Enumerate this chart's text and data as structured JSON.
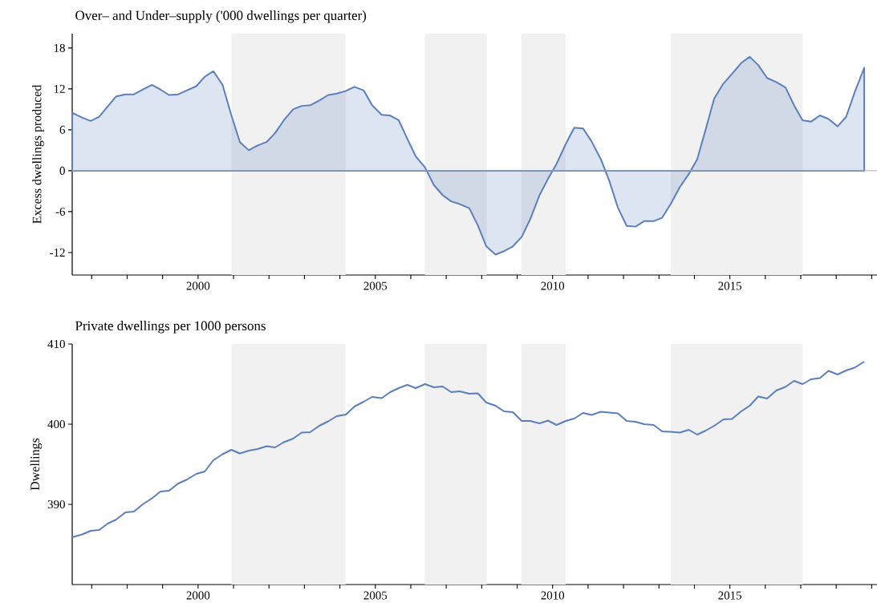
{
  "chart_data": [
    {
      "type": "area",
      "title": "Over– and Under–supply ('000 dwellings per quarter)",
      "ylabel": "Excess dwellings produced",
      "x": [
        1996.45,
        1996.73,
        1996.97,
        1997.21,
        1997.45,
        1997.69,
        1997.95,
        1998.19,
        1998.44,
        1998.7,
        1998.94,
        1999.18,
        1999.44,
        1999.69,
        1999.95,
        2000.19,
        2000.43,
        2000.69,
        2000.94,
        2001.18,
        2001.43,
        2001.68,
        2001.93,
        2002.17,
        2002.42,
        2002.68,
        2002.92,
        2003.16,
        2003.42,
        2003.67,
        2003.91,
        2004.17,
        2004.41,
        2004.67,
        2004.91,
        2005.18,
        2005.42,
        2005.66,
        2005.9,
        2006.14,
        2006.4,
        2006.65,
        2006.9,
        2007.14,
        2007.38,
        2007.65,
        2007.89,
        2008.13,
        2008.39,
        2008.63,
        2008.88,
        2009.13,
        2009.37,
        2009.63,
        2009.87,
        2010.11,
        2010.37,
        2010.61,
        2010.86,
        2011.1,
        2011.36,
        2011.6,
        2011.84,
        2012.09,
        2012.34,
        2012.58,
        2012.85,
        2013.09,
        2013.33,
        2013.59,
        2013.84,
        2014.08,
        2014.32,
        2014.56,
        2014.82,
        2015.06,
        2015.32,
        2015.56,
        2015.8,
        2016.05,
        2016.31,
        2016.57,
        2016.81,
        2017.05,
        2017.29,
        2017.54,
        2017.78,
        2018.04,
        2018.28,
        2018.52,
        2018.79
      ],
      "series": [
        {
          "color": "#5b7fbc",
          "values": [
            8.5,
            7.8,
            7.3,
            7.9,
            9.4,
            10.9,
            11.2,
            11.2,
            11.9,
            12.6,
            11.9,
            11.1,
            11.2,
            11.8,
            12.4,
            13.8,
            14.6,
            12.6,
            8.1,
            4.2,
            3.0,
            3.7,
            4.2,
            5.5,
            7.4,
            9.0,
            9.5,
            9.6,
            10.3,
            11.1,
            11.3,
            11.7,
            12.3,
            11.8,
            9.6,
            8.2,
            8.1,
            7.4,
            4.7,
            2.1,
            0.5,
            -2.1,
            -3.6,
            -4.5,
            -4.9,
            -5.5,
            -8.0,
            -11.1,
            -12.3,
            -11.8,
            -11.1,
            -9.7,
            -7.1,
            -3.6,
            -1.2,
            1.0,
            3.9,
            6.3,
            6.2,
            4.3,
            1.7,
            -1.5,
            -5.4,
            -8.1,
            -8.2,
            -7.4,
            -7.4,
            -6.9,
            -4.9,
            -2.4,
            -0.5,
            1.7,
            6.1,
            10.6,
            12.8,
            14.2,
            15.8,
            16.7,
            15.5,
            13.6,
            13.0,
            12.2,
            9.6,
            7.4,
            7.2,
            8.1,
            7.6,
            6.5,
            7.9,
            11.5,
            15.1
          ]
        }
      ],
      "xlim": [
        1996.45,
        2019.15
      ],
      "ylim": [
        -15.3,
        20.1
      ],
      "xticks": [
        {
          "value": 1997,
          "label": null
        },
        {
          "value": 1998,
          "label": null
        },
        {
          "value": 1999,
          "label": null
        },
        2000,
        {
          "value": 2001,
          "label": null
        },
        {
          "value": 2002,
          "label": null
        },
        {
          "value": 2003,
          "label": null
        },
        {
          "value": 2004,
          "label": null
        },
        2005,
        {
          "value": 2006,
          "label": null
        },
        {
          "value": 2007,
          "label": null
        },
        {
          "value": 2008,
          "label": null
        },
        {
          "value": 2009,
          "label": null
        },
        2010,
        {
          "value": 2011,
          "label": null
        },
        {
          "value": 2012,
          "label": null
        },
        {
          "value": 2013,
          "label": null
        },
        {
          "value": 2014,
          "label": null
        },
        2015,
        {
          "value": 2016,
          "label": null
        },
        {
          "value": 2017,
          "label": null
        },
        {
          "value": 2018,
          "label": null
        },
        {
          "value": 2019,
          "label": null
        }
      ],
      "yticks": [
        -12,
        -6,
        0,
        6,
        12,
        18
      ],
      "ref_lines": [
        {
          "axis": "y",
          "value": 0,
          "color": "#a8afbd"
        }
      ],
      "bands": [
        {
          "axis": "x",
          "from": 2000.94,
          "to": 2004.16,
          "color": "#f1f1f1"
        },
        {
          "axis": "x",
          "from": 2006.4,
          "to": 2008.14,
          "color": "#f1f1f1"
        },
        {
          "axis": "x",
          "from": 2009.12,
          "to": 2010.37,
          "color": "#f1f1f1"
        },
        {
          "axis": "x",
          "from": 2013.33,
          "to": 2017.05,
          "color": "#f1f1f1"
        }
      ]
    },
    {
      "type": "line",
      "title": "Private dwellings per 1000 persons",
      "ylabel": "Dwellings",
      "x": [
        1996.45,
        1996.73,
        1996.97,
        1997.21,
        1997.45,
        1997.69,
        1997.95,
        1998.19,
        1998.44,
        1998.7,
        1998.94,
        1999.18,
        1999.44,
        1999.69,
        1999.95,
        2000.19,
        2000.43,
        2000.69,
        2000.94,
        2001.18,
        2001.43,
        2001.68,
        2001.93,
        2002.17,
        2002.42,
        2002.68,
        2002.92,
        2003.16,
        2003.42,
        2003.67,
        2003.91,
        2004.17,
        2004.41,
        2004.67,
        2004.91,
        2005.18,
        2005.42,
        2005.66,
        2005.9,
        2006.14,
        2006.4,
        2006.65,
        2006.9,
        2007.14,
        2007.38,
        2007.65,
        2007.89,
        2008.13,
        2008.39,
        2008.63,
        2008.88,
        2009.13,
        2009.37,
        2009.63,
        2009.87,
        2010.11,
        2010.37,
        2010.61,
        2010.86,
        2011.1,
        2011.36,
        2011.6,
        2011.84,
        2012.09,
        2012.34,
        2012.58,
        2012.85,
        2013.09,
        2013.33,
        2013.59,
        2013.84,
        2014.08,
        2014.32,
        2014.56,
        2014.82,
        2015.06,
        2015.32,
        2015.56,
        2015.8,
        2016.05,
        2016.31,
        2016.57,
        2016.81,
        2017.05,
        2017.29,
        2017.54,
        2017.78,
        2018.04,
        2018.28,
        2018.52,
        2018.79
      ],
      "series": [
        {
          "color": "#5b7fbc",
          "values": [
            385.9,
            386.25,
            386.7,
            386.8,
            387.6,
            388.1,
            389.0,
            389.1,
            390.0,
            390.75,
            391.6,
            391.7,
            392.6,
            393.1,
            393.8,
            394.1,
            395.5,
            396.25,
            396.8,
            396.35,
            396.7,
            396.9,
            397.25,
            397.1,
            397.75,
            398.2,
            398.95,
            399.0,
            399.8,
            400.35,
            401.0,
            401.2,
            402.2,
            402.8,
            403.4,
            403.25,
            404.0,
            404.5,
            404.9,
            404.5,
            405.0,
            404.6,
            404.7,
            404.0,
            404.1,
            403.8,
            403.85,
            402.7,
            402.3,
            401.6,
            401.5,
            400.4,
            400.4,
            400.1,
            400.45,
            399.9,
            400.4,
            400.7,
            401.4,
            401.15,
            401.55,
            401.45,
            401.35,
            400.4,
            400.3,
            400.0,
            399.9,
            399.1,
            399.05,
            398.95,
            399.3,
            398.7,
            399.2,
            399.8,
            400.6,
            400.65,
            401.6,
            402.3,
            403.45,
            403.2,
            404.2,
            404.65,
            405.4,
            405.0,
            405.6,
            405.75,
            406.65,
            406.2,
            406.7,
            407.05,
            407.8
          ]
        }
      ],
      "xlim": [
        1996.45,
        2019.15
      ],
      "ylim": [
        380,
        410
      ],
      "xticks": [
        {
          "value": 1997,
          "label": null
        },
        {
          "value": 1998,
          "label": null
        },
        {
          "value": 1999,
          "label": null
        },
        2000,
        {
          "value": 2001,
          "label": null
        },
        {
          "value": 2002,
          "label": null
        },
        {
          "value": 2003,
          "label": null
        },
        {
          "value": 2004,
          "label": null
        },
        2005,
        {
          "value": 2006,
          "label": null
        },
        {
          "value": 2007,
          "label": null
        },
        {
          "value": 2008,
          "label": null
        },
        {
          "value": 2009,
          "label": null
        },
        2010,
        {
          "value": 2011,
          "label": null
        },
        {
          "value": 2012,
          "label": null
        },
        {
          "value": 2013,
          "label": null
        },
        {
          "value": 2014,
          "label": null
        },
        2015,
        {
          "value": 2016,
          "label": null
        },
        {
          "value": 2017,
          "label": null
        },
        {
          "value": 2018,
          "label": null
        },
        {
          "value": 2019,
          "label": null
        }
      ],
      "yticks": [
        390,
        400,
        410
      ],
      "bands": [
        {
          "axis": "x",
          "from": 2000.94,
          "to": 2004.16,
          "color": "#f1f1f1"
        },
        {
          "axis": "x",
          "from": 2006.4,
          "to": 2008.14,
          "color": "#f1f1f1"
        },
        {
          "axis": "x",
          "from": 2009.12,
          "to": 2010.37,
          "color": "#f1f1f1"
        },
        {
          "axis": "x",
          "from": 2013.33,
          "to": 2017.05,
          "color": "#f1f1f1"
        }
      ]
    }
  ]
}
